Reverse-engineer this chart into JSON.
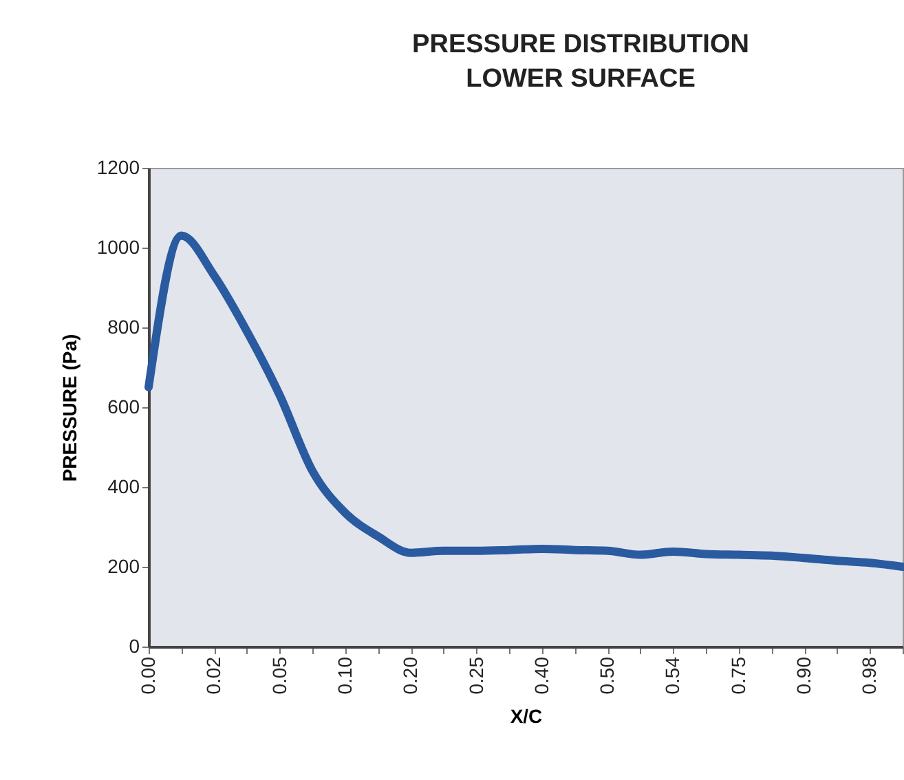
{
  "chart_data": {
    "type": "line",
    "title": "PRESSURE DISTRIBUTION",
    "subtitle": "LOWER SURFACE",
    "xlabel": "X/C",
    "ylabel": "PRESSURE (Pa)",
    "categories": [
      "0.00",
      null,
      "0.02",
      null,
      "0.05",
      null,
      "0.10",
      null,
      "0.20",
      null,
      "0.25",
      null,
      "0.40",
      null,
      "0.50",
      null,
      "0.54",
      null,
      "0.75",
      null,
      "0.90",
      null,
      "0.98",
      null
    ],
    "series": [
      {
        "color": "#2a5aa0",
        "values": [
          650,
          1030,
          930,
          790,
          630,
          440,
          335,
          276,
          235,
          240,
          240,
          242,
          245,
          242,
          240,
          230,
          238,
          232,
          230,
          228,
          222,
          215,
          210,
          200
        ]
      }
    ],
    "ylim": [
      0,
      1200
    ],
    "yticks": [
      0,
      200,
      400,
      600,
      800,
      1000,
      1200
    ],
    "grid": false
  }
}
